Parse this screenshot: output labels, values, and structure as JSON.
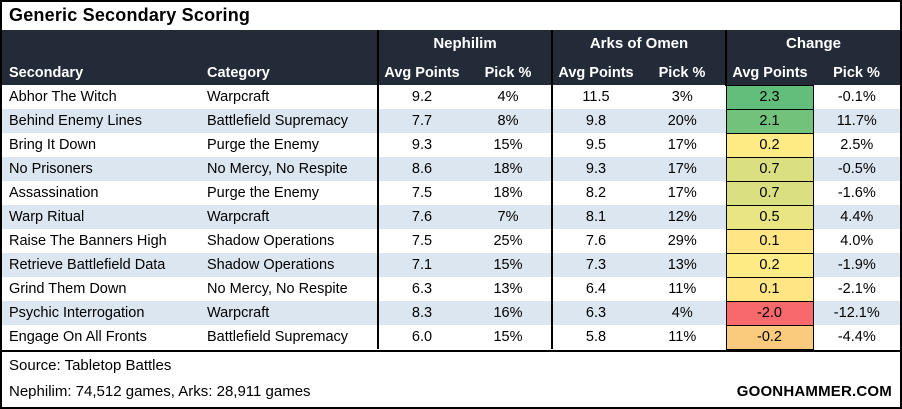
{
  "title": "Generic Secondary Scoring",
  "header": {
    "secondary": "Secondary",
    "category": "Category",
    "avg_points": "Avg Points",
    "pick_pct": "Pick %"
  },
  "footer": {
    "source": "Source: Tabletop Battles",
    "games": "Nephilim: 74,512 games, Arks: 28,911 games",
    "brand": "GOONHAMMER.COM"
  },
  "colors": {
    "header_bg": "#232B39",
    "row_band": "#DCE6F1",
    "scale_max_green": "#63BE7B",
    "scale_mid_yellow": "#FFEB84",
    "scale_min_red": "#F8696B",
    "border": "#000000"
  },
  "chart_data": {
    "type": "table",
    "title": "Generic Secondary Scoring",
    "column_groups": [
      "Nephilim",
      "Arks of Omen",
      "Change"
    ],
    "columns": [
      "Secondary",
      "Category",
      "Nephilim Avg Points",
      "Nephilim Pick %",
      "Arks of Omen Avg Points",
      "Arks of Omen Pick %",
      "Change Avg Points",
      "Change Pick %"
    ],
    "rows": [
      {
        "secondary": "Abhor The Witch",
        "category": "Warpcraft",
        "neph_avg": "9.2",
        "neph_pick": "4%",
        "arks_avg": "11.5",
        "arks_pick": "3%",
        "chg_avg": "2.3",
        "chg_pick": "-0.1%",
        "chg_color": "#63BE7B"
      },
      {
        "secondary": "Behind Enemy Lines",
        "category": "Battlefield Supremacy",
        "neph_avg": "7.7",
        "neph_pick": "8%",
        "arks_avg": "9.8",
        "arks_pick": "20%",
        "chg_avg": "2.1",
        "chg_pick": "11.7%",
        "chg_color": "#72C27C"
      },
      {
        "secondary": "Bring It Down",
        "category": "Purge the Enemy",
        "neph_avg": "9.3",
        "neph_pick": "15%",
        "arks_avg": "9.5",
        "arks_pick": "17%",
        "chg_avg": "0.2",
        "chg_pick": "2.5%",
        "chg_color": "#FFEB84"
      },
      {
        "secondary": "No Prisoners",
        "category": "No Mercy, No Respite",
        "neph_avg": "8.6",
        "neph_pick": "18%",
        "arks_avg": "9.3",
        "arks_pick": "17%",
        "chg_avg": "0.7",
        "chg_pick": "-0.5%",
        "chg_color": "#DAE082"
      },
      {
        "secondary": "Assassination",
        "category": "Purge the Enemy",
        "neph_avg": "7.5",
        "neph_pick": "18%",
        "arks_avg": "8.2",
        "arks_pick": "17%",
        "chg_avg": "0.7",
        "chg_pick": "-1.6%",
        "chg_color": "#DAE082"
      },
      {
        "secondary": "Warp Ritual",
        "category": "Warpcraft",
        "neph_avg": "7.6",
        "neph_pick": "7%",
        "arks_avg": "8.1",
        "arks_pick": "12%",
        "chg_avg": "0.5",
        "chg_pick": "4.4%",
        "chg_color": "#E9E583"
      },
      {
        "secondary": "Raise The Banners High",
        "category": "Shadow Operations",
        "neph_avg": "7.5",
        "neph_pick": "25%",
        "arks_avg": "7.6",
        "arks_pick": "29%",
        "chg_avg": "0.1",
        "chg_pick": "4.0%",
        "chg_color": "#FFE583"
      },
      {
        "secondary": "Retrieve Battlefield Data",
        "category": "Shadow Operations",
        "neph_avg": "7.1",
        "neph_pick": "15%",
        "arks_avg": "7.3",
        "arks_pick": "13%",
        "chg_avg": "0.2",
        "chg_pick": "-1.9%",
        "chg_color": "#FFEB84"
      },
      {
        "secondary": "Grind Them Down",
        "category": "No Mercy, No Respite",
        "neph_avg": "6.3",
        "neph_pick": "13%",
        "arks_avg": "6.4",
        "arks_pick": "11%",
        "chg_avg": "0.1",
        "chg_pick": "-2.1%",
        "chg_color": "#FFE583"
      },
      {
        "secondary": "Psychic Interrogation",
        "category": "Warpcraft",
        "neph_avg": "8.3",
        "neph_pick": "16%",
        "arks_avg": "6.3",
        "arks_pick": "4%",
        "chg_avg": "-2.0",
        "chg_pick": "-12.1%",
        "chg_color": "#F8696B"
      },
      {
        "secondary": "Engage On All Fronts",
        "category": "Battlefield Supremacy",
        "neph_avg": "6.0",
        "neph_pick": "15%",
        "arks_avg": "5.8",
        "arks_pick": "11%",
        "chg_avg": "-0.2",
        "chg_pick": "-4.4%",
        "chg_color": "#FBCB7D"
      }
    ]
  }
}
